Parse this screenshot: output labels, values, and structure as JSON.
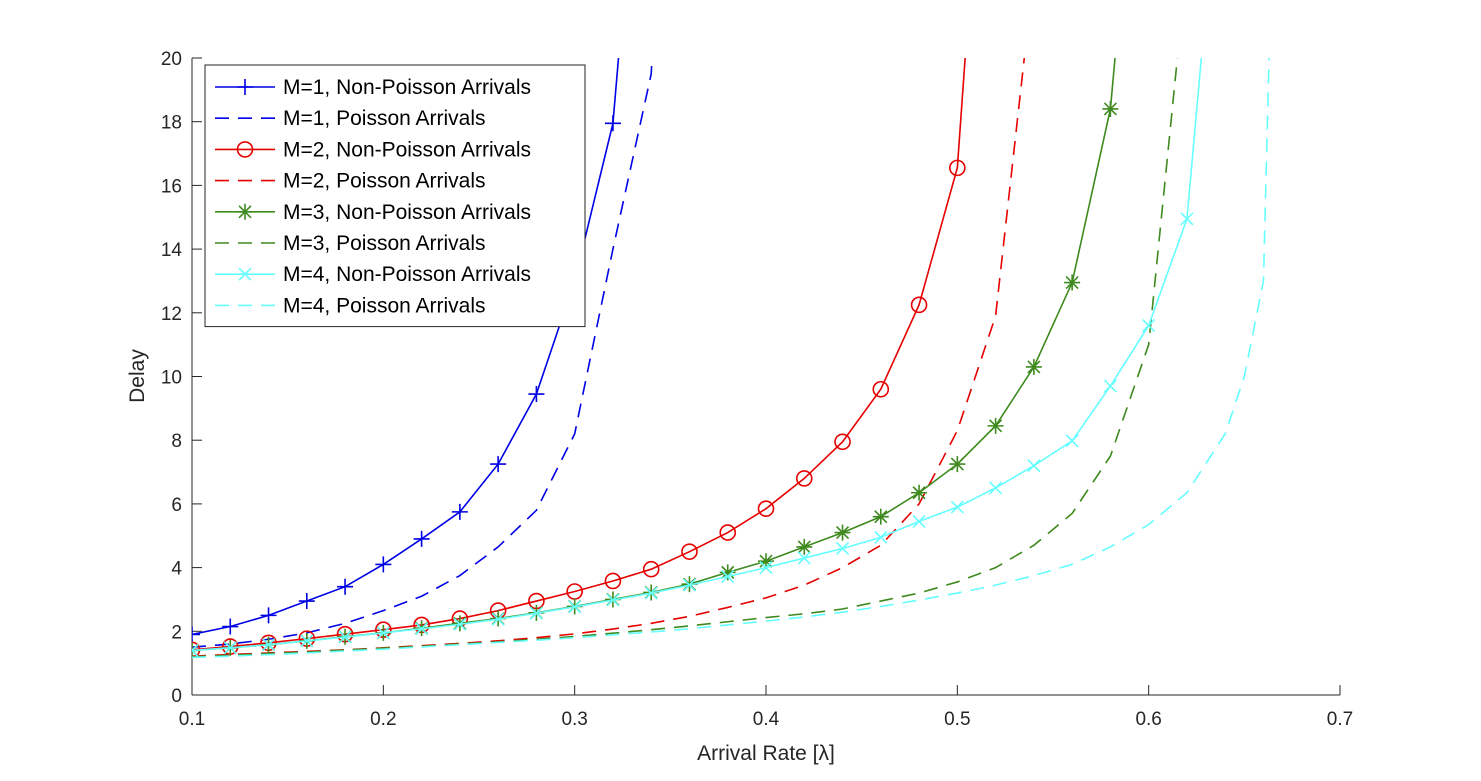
{
  "chart_data": {
    "type": "line",
    "title": "",
    "xlabel": "Arrival Rate [λ]",
    "ylabel": "Delay",
    "xlim": [
      0.1,
      0.7
    ],
    "ylim": [
      0,
      20
    ],
    "xticks": [
      0.1,
      0.2,
      0.3,
      0.4,
      0.5,
      0.6,
      0.7
    ],
    "xtick_labels": [
      "0.1",
      "0.2",
      "0.3",
      "0.4",
      "0.5",
      "0.6",
      "0.7"
    ],
    "yticks": [
      0,
      2,
      4,
      6,
      8,
      10,
      12,
      14,
      16,
      18,
      20
    ],
    "ytick_labels": [
      "0",
      "2",
      "4",
      "6",
      "8",
      "10",
      "12",
      "14",
      "16",
      "18",
      "20"
    ],
    "grid": false,
    "legend_position": "top-left",
    "series": [
      {
        "name": "M=1, Non-Poisson Arrivals",
        "color": "#0000e6",
        "line": "solid",
        "marker": "plus",
        "x": [
          0.1,
          0.12,
          0.14,
          0.16,
          0.18,
          0.2,
          0.22,
          0.24,
          0.26,
          0.28,
          0.3,
          0.32,
          0.33
        ],
        "y": [
          1.9,
          2.15,
          2.5,
          2.95,
          3.4,
          4.1,
          4.9,
          5.75,
          7.25,
          9.45,
          13.0,
          17.95,
          25.0
        ]
      },
      {
        "name": "M=1, Poisson Arrivals",
        "color": "#0000e6",
        "line": "dashed",
        "marker": "none",
        "x": [
          0.1,
          0.12,
          0.14,
          0.16,
          0.18,
          0.2,
          0.22,
          0.24,
          0.26,
          0.28,
          0.3,
          0.32,
          0.34,
          0.345
        ],
        "y": [
          1.5,
          1.6,
          1.75,
          1.95,
          2.25,
          2.65,
          3.1,
          3.75,
          4.65,
          5.8,
          8.2,
          14.0,
          19.5,
          25.0
        ]
      },
      {
        "name": "M=2, Non-Poisson Arrivals",
        "color": "#e60000",
        "line": "solid",
        "marker": "circle",
        "x": [
          0.1,
          0.12,
          0.14,
          0.16,
          0.18,
          0.2,
          0.22,
          0.24,
          0.26,
          0.28,
          0.3,
          0.32,
          0.34,
          0.36,
          0.38,
          0.4,
          0.42,
          0.44,
          0.46,
          0.48,
          0.5,
          0.51
        ],
        "y": [
          1.42,
          1.52,
          1.64,
          1.77,
          1.91,
          2.05,
          2.2,
          2.4,
          2.65,
          2.95,
          3.25,
          3.58,
          3.95,
          4.5,
          5.1,
          5.85,
          6.8,
          7.95,
          9.6,
          12.25,
          16.55,
          25.0
        ]
      },
      {
        "name": "M=2, Poisson Arrivals",
        "color": "#e60000",
        "line": "dashed",
        "marker": "none",
        "x": [
          0.1,
          0.12,
          0.14,
          0.16,
          0.18,
          0.2,
          0.22,
          0.24,
          0.26,
          0.28,
          0.3,
          0.32,
          0.34,
          0.36,
          0.38,
          0.4,
          0.42,
          0.44,
          0.46,
          0.48,
          0.5,
          0.52,
          0.535,
          0.54
        ],
        "y": [
          1.22,
          1.27,
          1.32,
          1.37,
          1.42,
          1.48,
          1.55,
          1.62,
          1.7,
          1.8,
          1.92,
          2.07,
          2.25,
          2.47,
          2.75,
          3.05,
          3.45,
          4.0,
          4.7,
          6.0,
          8.3,
          11.9,
          20.0,
          25.0
        ]
      },
      {
        "name": "M=3, Non-Poisson Arrivals",
        "color": "#3e8a1e",
        "line": "solid",
        "marker": "asterisk",
        "x": [
          0.1,
          0.12,
          0.14,
          0.16,
          0.18,
          0.2,
          0.22,
          0.24,
          0.26,
          0.28,
          0.3,
          0.32,
          0.34,
          0.36,
          0.38,
          0.4,
          0.42,
          0.44,
          0.46,
          0.48,
          0.5,
          0.52,
          0.54,
          0.56,
          0.58,
          0.59
        ],
        "y": [
          1.4,
          1.48,
          1.58,
          1.7,
          1.83,
          1.95,
          2.1,
          2.25,
          2.4,
          2.58,
          2.78,
          3.0,
          3.22,
          3.48,
          3.85,
          4.2,
          4.65,
          5.1,
          5.6,
          6.35,
          7.25,
          8.45,
          10.3,
          12.95,
          18.4,
          25.0
        ]
      },
      {
        "name": "M=3, Poisson Arrivals",
        "color": "#3e8a1e",
        "line": "dashed",
        "marker": "none",
        "x": [
          0.1,
          0.12,
          0.14,
          0.16,
          0.18,
          0.2,
          0.22,
          0.24,
          0.26,
          0.28,
          0.3,
          0.32,
          0.34,
          0.36,
          0.38,
          0.4,
          0.42,
          0.44,
          0.46,
          0.48,
          0.5,
          0.52,
          0.54,
          0.56,
          0.58,
          0.6,
          0.615,
          0.62
        ],
        "y": [
          1.2,
          1.25,
          1.3,
          1.35,
          1.41,
          1.47,
          1.53,
          1.6,
          1.67,
          1.75,
          1.84,
          1.94,
          2.05,
          2.17,
          2.3,
          2.43,
          2.55,
          2.7,
          2.95,
          3.2,
          3.55,
          4.0,
          4.7,
          5.7,
          7.5,
          11.0,
          20.0,
          25.0
        ]
      },
      {
        "name": "M=4, Non-Poisson Arrivals",
        "color": "#66ffff",
        "line": "solid",
        "marker": "cross",
        "x": [
          0.1,
          0.12,
          0.14,
          0.16,
          0.18,
          0.2,
          0.22,
          0.24,
          0.26,
          0.28,
          0.3,
          0.32,
          0.34,
          0.36,
          0.38,
          0.4,
          0.42,
          0.44,
          0.46,
          0.48,
          0.5,
          0.52,
          0.54,
          0.56,
          0.58,
          0.6,
          0.62,
          0.635
        ],
        "y": [
          1.4,
          1.48,
          1.58,
          1.7,
          1.82,
          1.95,
          2.08,
          2.22,
          2.38,
          2.57,
          2.77,
          2.98,
          3.2,
          3.45,
          3.72,
          4.0,
          4.3,
          4.6,
          4.95,
          5.45,
          5.9,
          6.5,
          7.2,
          7.98,
          9.7,
          11.6,
          14.95,
          25.0
        ]
      },
      {
        "name": "M=4, Poisson Arrivals",
        "color": "#66ffff",
        "line": "dashed",
        "marker": "none",
        "x": [
          0.1,
          0.12,
          0.14,
          0.16,
          0.18,
          0.2,
          0.22,
          0.24,
          0.26,
          0.28,
          0.3,
          0.32,
          0.34,
          0.36,
          0.38,
          0.4,
          0.42,
          0.44,
          0.46,
          0.48,
          0.5,
          0.52,
          0.54,
          0.56,
          0.58,
          0.6,
          0.62,
          0.64,
          0.65,
          0.66,
          0.665
        ],
        "y": [
          1.18,
          1.22,
          1.27,
          1.32,
          1.38,
          1.44,
          1.51,
          1.58,
          1.65,
          1.72,
          1.8,
          1.89,
          1.98,
          2.08,
          2.2,
          2.32,
          2.45,
          2.6,
          2.78,
          2.98,
          3.2,
          3.45,
          3.75,
          4.1,
          4.65,
          5.35,
          6.35,
          8.2,
          10.0,
          13.0,
          25.0
        ]
      }
    ]
  }
}
